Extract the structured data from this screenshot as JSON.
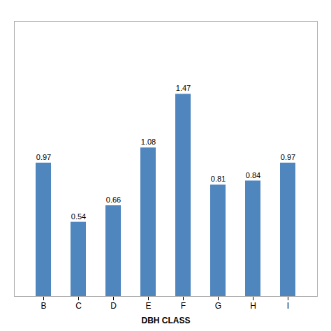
{
  "chart_data": {
    "type": "bar",
    "categories": [
      "B",
      "C",
      "D",
      "E",
      "F",
      "G",
      "H",
      "I"
    ],
    "values": [
      0.97,
      0.54,
      0.66,
      1.08,
      1.47,
      0.81,
      0.84,
      0.97
    ],
    "color": "#4f86be",
    "xlabel": "DBH CLASS",
    "ylim": [
      0,
      2.0
    ],
    "data_labels": true,
    "tick_labels": "x",
    "grid": false
  }
}
